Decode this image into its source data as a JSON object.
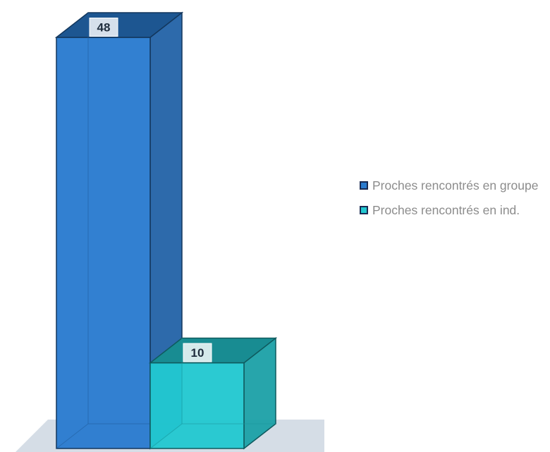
{
  "chart_data": {
    "type": "bar",
    "categories": [
      ""
    ],
    "series": [
      {
        "name": "Proches rencontrés en groupe",
        "values": [
          48
        ],
        "color": "#2a7bcf"
      },
      {
        "name": "Proches rencontrés en ind.",
        "values": [
          10
        ],
        "color": "#22c8d0"
      }
    ],
    "title": "",
    "xlabel": "",
    "ylabel": "",
    "ylim": [
      0,
      50
    ],
    "grid": false,
    "legend_position": "right",
    "three_d": true,
    "data_labels": [
      "48",
      "10"
    ]
  }
}
